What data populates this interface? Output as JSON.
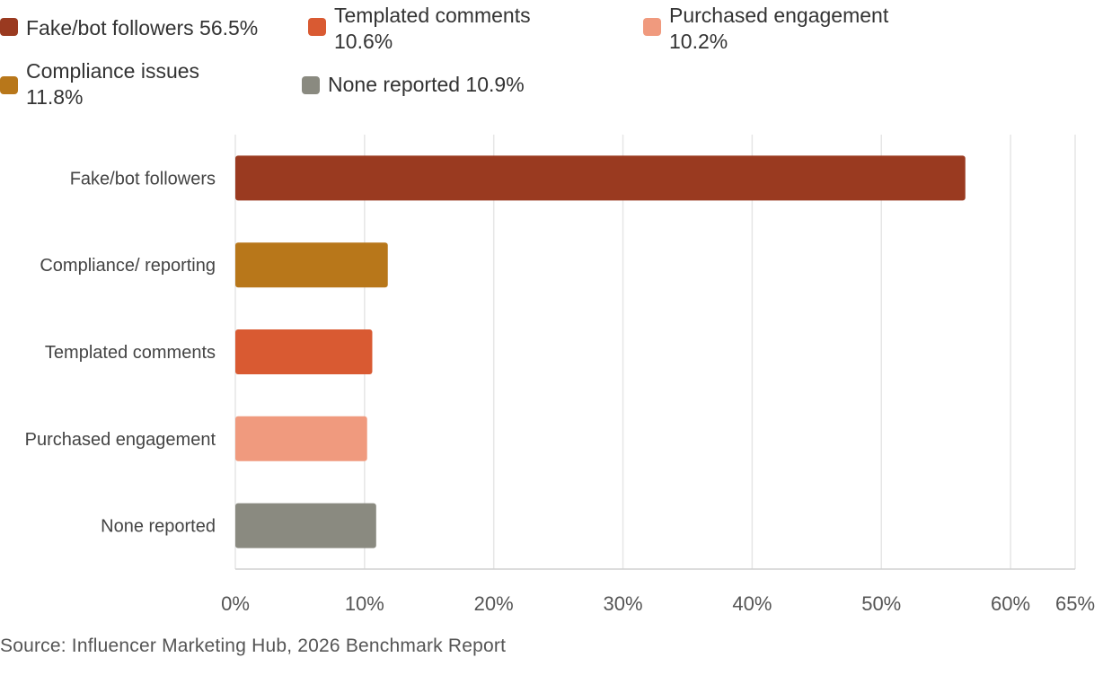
{
  "chart_data": {
    "type": "bar",
    "orientation": "horizontal",
    "categories": [
      "Fake/bot followers",
      "Compliance/ reporting",
      "Templated comments",
      "Purchased engagement",
      "None reported"
    ],
    "values": [
      56.5,
      11.8,
      10.6,
      10.2,
      10.9
    ],
    "colors": [
      "#9a3a20",
      "#b8771a",
      "#d95a32",
      "#f09a7e",
      "#8a8a80"
    ],
    "x_ticks": [
      "0%",
      "10%",
      "20%",
      "30%",
      "40%",
      "50%",
      "60%",
      "65%"
    ],
    "x_tick_values": [
      0,
      10,
      20,
      30,
      40,
      50,
      60,
      65
    ],
    "xlim": [
      0,
      65
    ],
    "grid": true,
    "legend_position": "top",
    "legend": [
      {
        "label": "Fake/bot followers 56.5%",
        "line1": "Fake/bot followers 56.5%",
        "line2": "",
        "color": "#9a3a20"
      },
      {
        "label": "Templated comments 10.6%",
        "line1": "Templated comments",
        "line2": "10.6%",
        "color": "#d95a32"
      },
      {
        "label": "Purchased engagement 10.2%",
        "line1": "Purchased engagement",
        "line2": "10.2%",
        "color": "#f09a7e"
      },
      {
        "label": "Compliance issues 11.8%",
        "line1": "Compliance issues",
        "line2": "11.8%",
        "color": "#b8771a"
      },
      {
        "label": "None reported 10.9%",
        "line1": "None reported 10.9%",
        "line2": "",
        "color": "#8a8a80"
      }
    ],
    "source": "Source: Influencer Marketing Hub, 2026 Benchmark Report"
  }
}
